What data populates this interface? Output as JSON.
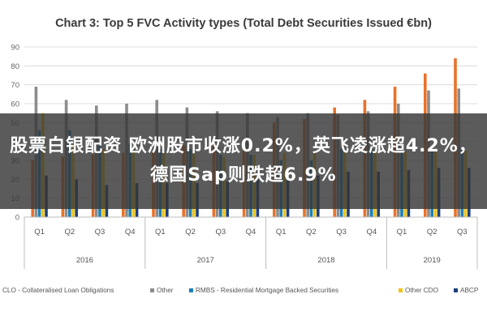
{
  "overlay": {
    "headline": "股票白银配资 欧洲股市收涨0.2%，英飞凌涨超4.2%，德国Sap则跌超6.9%"
  },
  "chart_data": {
    "type": "bar",
    "title": "Chart 3: Top 5 FVC Activity types (Total Debt Securities Issued €bn)",
    "xlabel": "",
    "ylabel": "",
    "ylim": [
      0,
      90
    ],
    "yticks": [
      0,
      10,
      20,
      30,
      40,
      50,
      60,
      70,
      80,
      90
    ],
    "grid": true,
    "legend": "bottom",
    "quarters": [
      "Q1",
      "Q2",
      "Q3",
      "Q4",
      "Q1",
      "Q2",
      "Q3",
      "Q4",
      "Q1",
      "Q2",
      "Q3",
      "Q4",
      "Q1",
      "Q2",
      "Q3"
    ],
    "years": [
      {
        "label": "2016",
        "span": 4
      },
      {
        "label": "2017",
        "span": 4
      },
      {
        "label": "2018",
        "span": 4
      },
      {
        "label": "2019",
        "span": 3
      }
    ],
    "series": [
      {
        "name": "CLO - Collateralised Loan Obligations",
        "color": "#e8732a",
        "values": [
          30,
          32,
          33,
          34,
          35,
          38,
          40,
          42,
          50,
          52,
          58,
          62,
          69,
          76,
          84
        ]
      },
      {
        "name": "Other",
        "color": "#8c8c8c",
        "values": [
          69,
          62,
          59,
          60,
          62,
          58,
          56,
          55,
          53,
          55,
          54,
          56,
          60,
          67,
          68
        ]
      },
      {
        "name": "RMBS - Residential Mortgage Backed Securities",
        "color": "#1f7fb4",
        "values": [
          46,
          46,
          40,
          39,
          36,
          36,
          33,
          33,
          30,
          30,
          36,
          36,
          36,
          36,
          36
        ]
      },
      {
        "name": "Other CDO",
        "color": "#f0c419",
        "values": [
          55,
          40,
          36,
          36,
          34,
          36,
          32,
          33,
          34,
          34,
          35,
          35,
          35,
          35,
          35
        ]
      },
      {
        "name": "ABCP",
        "color": "#1f3f7a",
        "values": [
          22,
          20,
          17,
          18,
          18,
          18,
          19,
          20,
          20,
          22,
          24,
          24,
          25,
          26,
          26
        ]
      }
    ]
  }
}
